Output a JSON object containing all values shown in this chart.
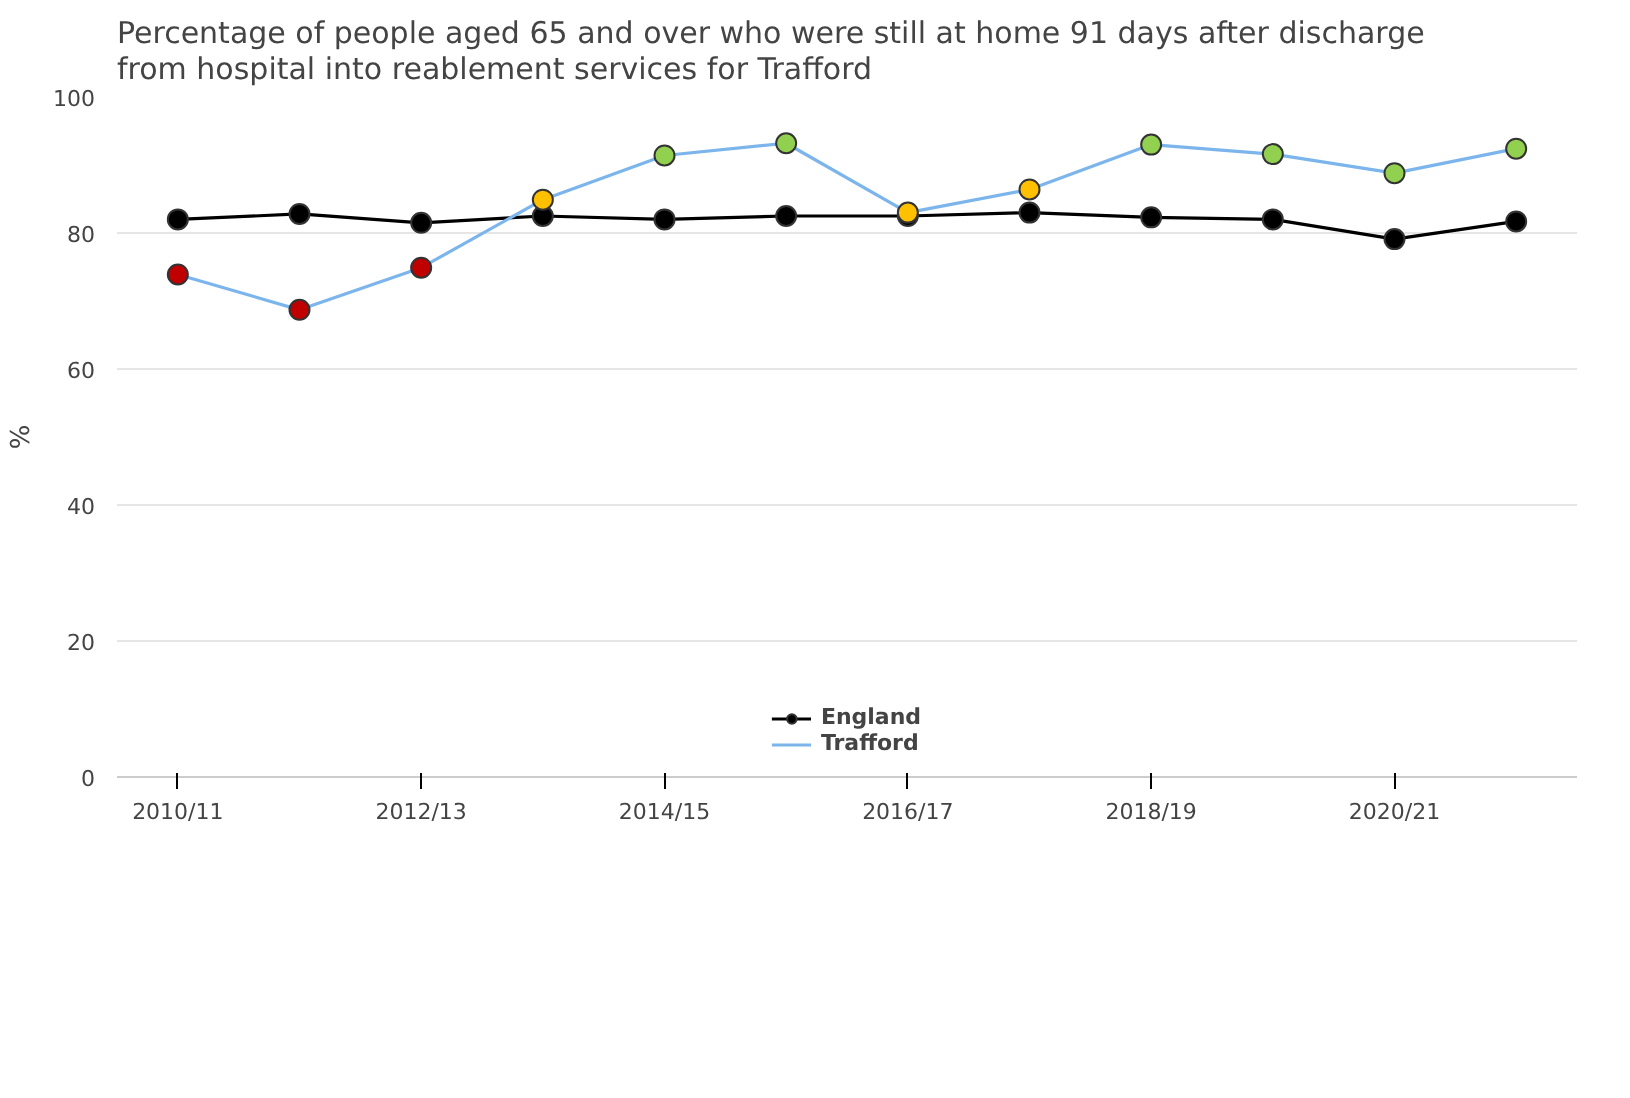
{
  "chart_data": {
    "type": "line",
    "title": "Percentage of people aged 65 and over who were still at home 91 days after discharge\nfrom hospital into reablement services for Trafford",
    "ylabel": "%",
    "categories": [
      "2010/11",
      null,
      "2012/13",
      null,
      "2014/15",
      null,
      "2016/17",
      null,
      "2018/19",
      null,
      "2020/21",
      null
    ],
    "series": [
      {
        "name": "England",
        "color": "#000000",
        "values": [
          82.0,
          82.8,
          81.5,
          82.5,
          82.0,
          82.5,
          82.5,
          83.0,
          82.3,
          82.0,
          79.1,
          81.7
        ]
      },
      {
        "name": "Trafford",
        "color": "#7cb5ec",
        "colors": [
          "#c00000",
          "#c00000",
          "#c00000",
          "#ffc000",
          "#92d050",
          "#92d050",
          "#ffc000",
          "#ffc000",
          "#92d050",
          "#92d050",
          "#92d050",
          "#92d050"
        ],
        "values": [
          73.9,
          68.7,
          74.9,
          84.9,
          91.4,
          93.2,
          83.0,
          86.4,
          93.0,
          91.6,
          88.8,
          92.4
        ]
      }
    ],
    "ylim": [
      0,
      100
    ],
    "yticks": [
      0,
      20,
      40,
      60,
      80,
      100
    ],
    "grid": "y",
    "legend": "bottom",
    "marker": "circle",
    "line_style": "solid"
  }
}
